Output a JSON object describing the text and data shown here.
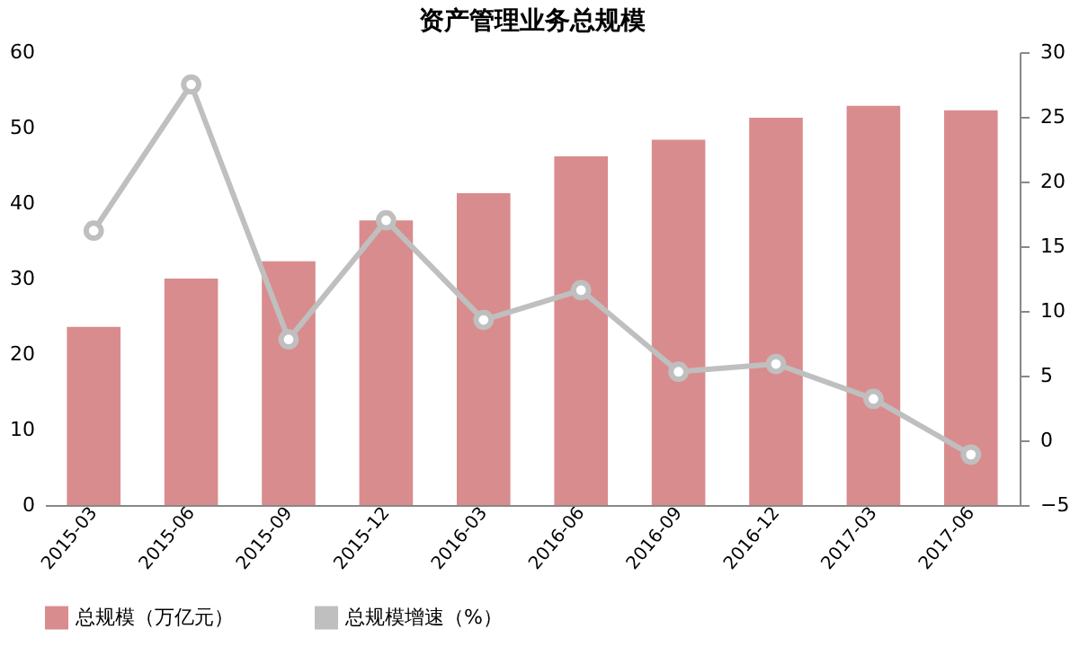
{
  "chart_data": {
    "type": "bar",
    "title": "资产管理业务总规模",
    "categories": [
      "2015-03",
      "2015-06",
      "2015-09",
      "2015-12",
      "2016-03",
      "2016-06",
      "2016-09",
      "2016-12",
      "2017-03",
      "2017-06"
    ],
    "series": [
      {
        "name": "总规模（万亿元）",
        "type": "bar",
        "color": "#d98c8e",
        "values": [
          23.6,
          30.0,
          32.3,
          37.7,
          41.3,
          46.2,
          48.4,
          51.3,
          52.9,
          52.3
        ]
      },
      {
        "name": "总规模增速（%）",
        "type": "line",
        "axis": "y2",
        "color": "#bfbfbf",
        "values": [
          16.2,
          27.5,
          7.8,
          17.0,
          9.3,
          11.6,
          5.3,
          5.9,
          3.2,
          -1.1
        ]
      }
    ],
    "ylim": [
      0,
      60
    ],
    "yticks": [
      0,
      10,
      20,
      30,
      40,
      50,
      60
    ],
    "y2lim": [
      -5,
      30
    ],
    "y2ticks": [
      -5,
      0,
      5,
      10,
      15,
      20,
      25,
      30
    ],
    "grid": false,
    "legend": "bottom",
    "marker": "circle",
    "line_style": "solid"
  }
}
